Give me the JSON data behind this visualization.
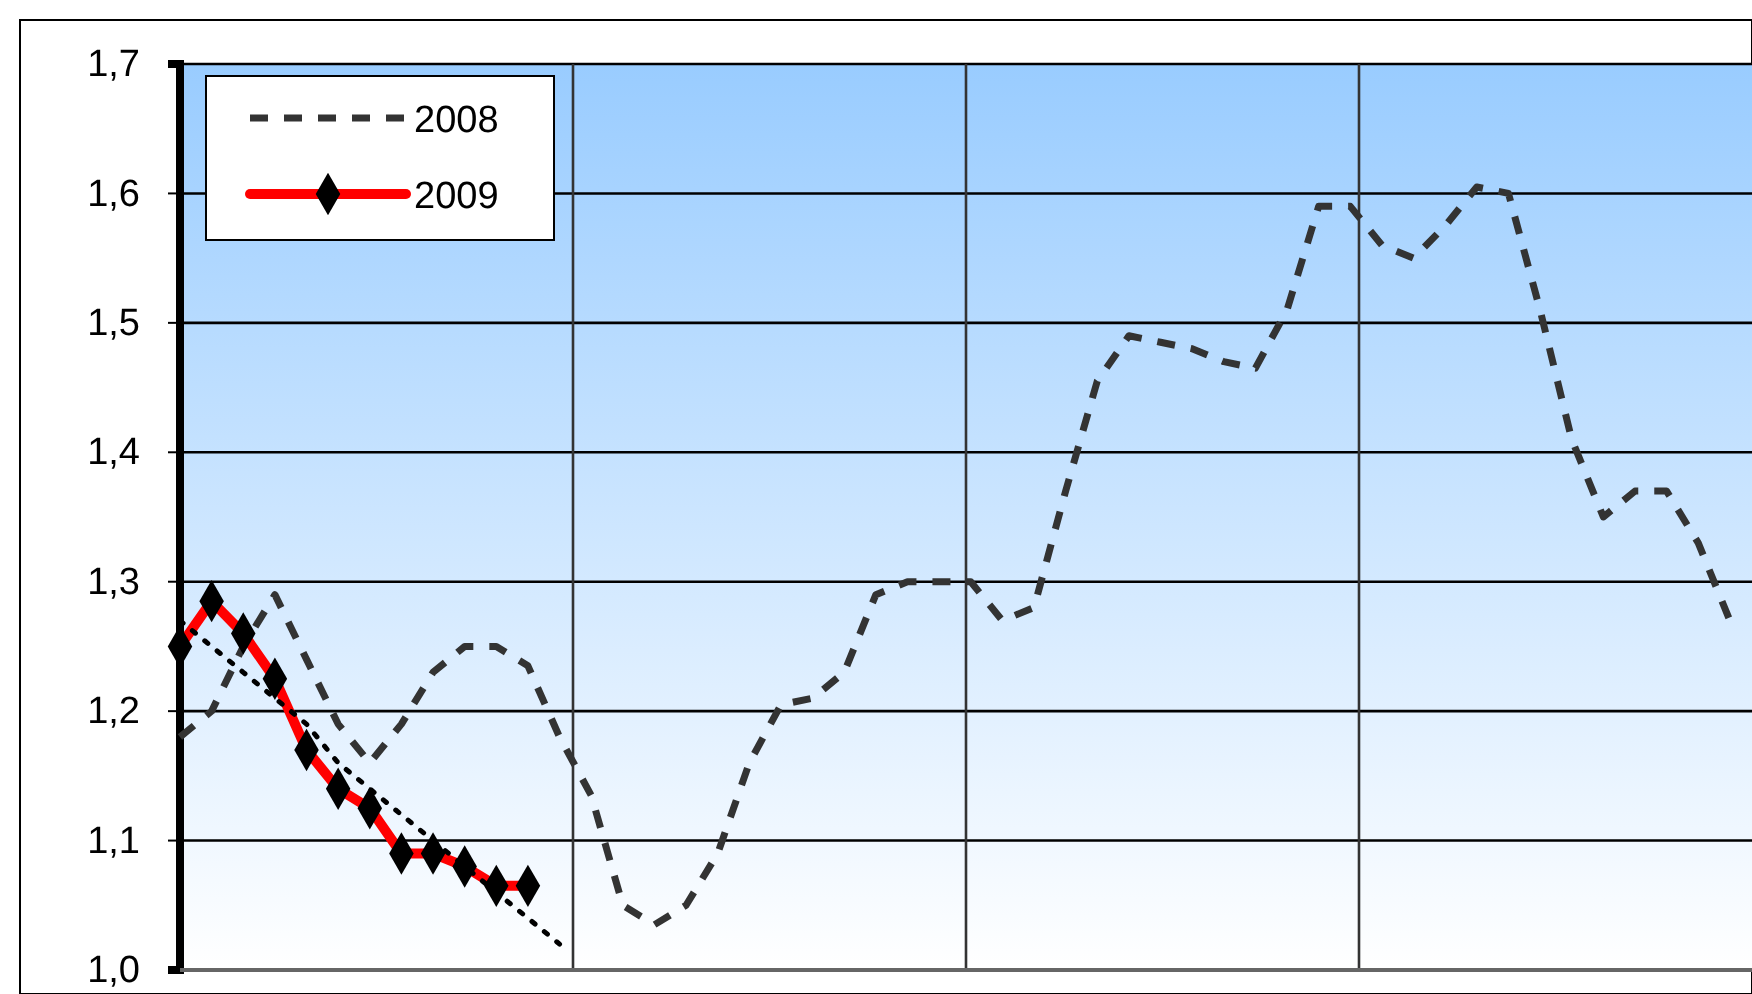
{
  "chart_data": {
    "type": "line",
    "categories": [
      null,
      null,
      null,
      null,
      null,
      null,
      null,
      null,
      null,
      null,
      null,
      null,
      null,
      null,
      null,
      null,
      null,
      null,
      null,
      null,
      null,
      null,
      null,
      null,
      null,
      null,
      null,
      null,
      null,
      null,
      null,
      null,
      null,
      null,
      null,
      null,
      null,
      null,
      null,
      null,
      null,
      null,
      null,
      null,
      null,
      null,
      null,
      null,
      null,
      null
    ],
    "ylim": [
      1.0,
      1.7
    ],
    "yticks": [
      {
        "value": 1.0,
        "label": "1,0"
      },
      {
        "value": 1.1,
        "label": "1,1"
      },
      {
        "value": 1.2,
        "label": "1,2"
      },
      {
        "value": 1.3,
        "label": "1,3"
      },
      {
        "value": 1.4,
        "label": "1,4"
      },
      {
        "value": 1.5,
        "label": "1,5"
      },
      {
        "value": 1.6,
        "label": "1,6"
      },
      {
        "value": 1.7,
        "label": "1,7"
      }
    ],
    "grid": true,
    "legend": "top left",
    "series": [
      {
        "name": "2008",
        "color": "#333333",
        "line_style": "dashed",
        "marker": "none",
        "values": [
          1.18,
          1.2,
          1.25,
          1.29,
          1.24,
          1.19,
          1.16,
          1.19,
          1.23,
          1.25,
          1.25,
          1.235,
          1.18,
          1.135,
          1.05,
          1.035,
          1.05,
          1.09,
          1.16,
          1.205,
          1.21,
          1.23,
          1.29,
          1.3,
          1.3,
          1.3,
          1.27,
          1.28,
          1.37,
          1.455,
          1.49,
          1.485,
          1.48,
          1.47,
          1.465,
          1.51,
          1.59,
          1.59,
          1.56,
          1.55,
          1.575,
          1.605,
          1.6,
          1.51,
          1.41,
          1.35,
          1.37,
          1.37,
          1.33,
          1.27
        ]
      },
      {
        "name": "2009",
        "color": "#ff0000",
        "line_style": "solid",
        "marker": "diamond",
        "values": [
          1.25,
          1.285,
          1.26,
          1.225,
          1.17,
          1.14,
          1.125,
          1.09,
          1.09,
          1.08,
          1.065,
          1.065,
          null,
          null,
          null,
          null,
          null,
          null,
          null,
          null,
          null,
          null,
          null,
          null,
          null,
          null,
          null,
          null,
          null,
          null,
          null,
          null,
          null,
          null,
          null,
          null,
          null,
          null,
          null,
          null,
          null,
          null,
          null,
          null,
          null,
          null,
          null,
          null,
          null,
          null
        ]
      },
      {
        "color": "#000000",
        "line_style": "dotted",
        "marker": "none",
        "values": [
          1.27,
          1.25,
          1.23,
          1.21,
          1.19,
          1.16,
          1.14,
          1.12,
          1.1,
          1.08,
          1.06,
          1.04,
          1.02,
          null,
          null,
          null,
          null,
          null,
          null,
          null,
          null,
          null,
          null,
          null,
          null,
          null,
          null,
          null,
          null,
          null,
          null,
          null,
          null,
          null,
          null,
          null,
          null,
          null,
          null,
          null,
          null,
          null,
          null,
          null,
          null,
          null,
          null,
          null,
          null,
          null
        ]
      }
    ]
  }
}
